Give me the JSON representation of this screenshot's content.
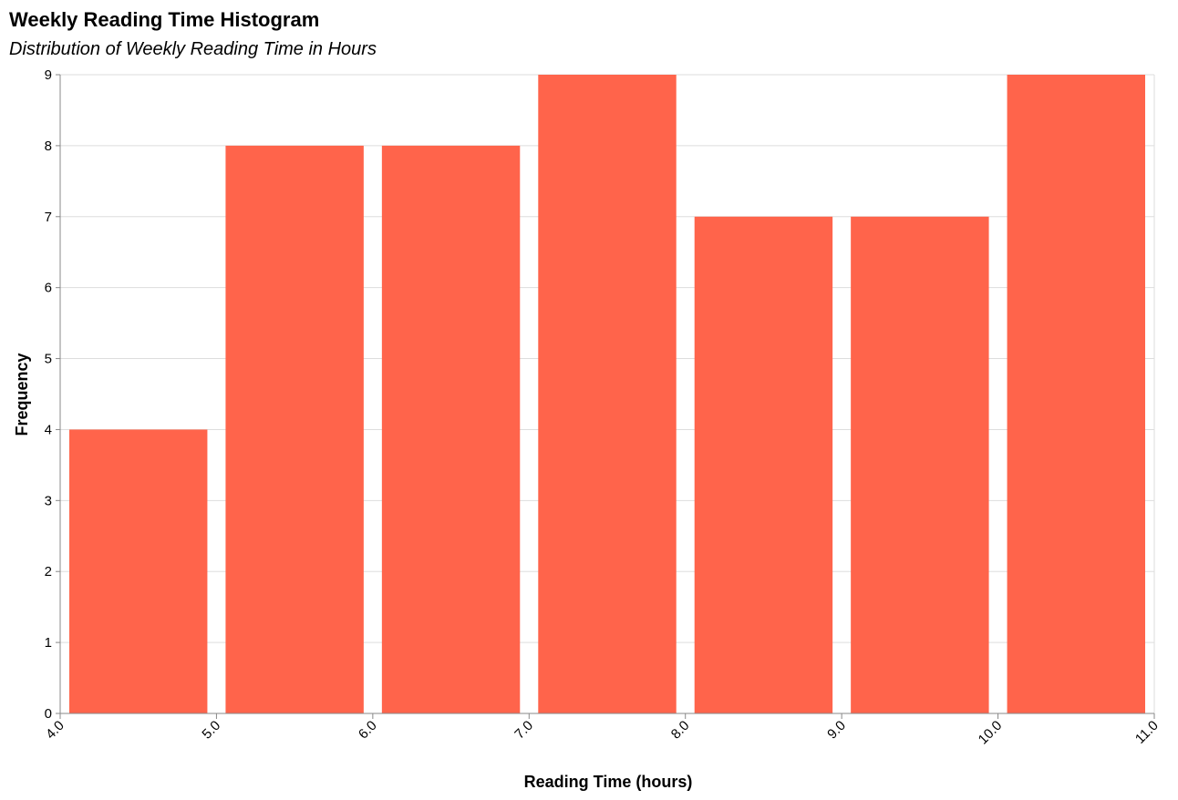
{
  "colors": {
    "bar": "#ff644b"
  },
  "chart_data": {
    "type": "bar",
    "title": "Weekly Reading Time Histogram",
    "subtitle": "Distribution of Weekly Reading Time in Hours",
    "xlabel": "Reading Time (hours)",
    "ylabel": "Frequency",
    "bins": [
      {
        "start": 4.0,
        "end": 5.0,
        "count": 4
      },
      {
        "start": 5.0,
        "end": 6.0,
        "count": 8
      },
      {
        "start": 6.0,
        "end": 7.0,
        "count": 8
      },
      {
        "start": 7.0,
        "end": 8.0,
        "count": 9
      },
      {
        "start": 8.0,
        "end": 9.0,
        "count": 7
      },
      {
        "start": 9.0,
        "end": 10.0,
        "count": 7
      },
      {
        "start": 10.0,
        "end": 11.0,
        "count": 9
      }
    ],
    "xlim": [
      4.0,
      11.0
    ],
    "ylim": [
      0,
      9
    ],
    "xticks": [
      "4.0",
      "5.0",
      "6.0",
      "7.0",
      "8.0",
      "9.0",
      "10.0",
      "11.0"
    ],
    "yticks": [
      "0",
      "1",
      "2",
      "3",
      "4",
      "5",
      "6",
      "7",
      "8",
      "9"
    ],
    "grid": true,
    "legend": "none"
  }
}
